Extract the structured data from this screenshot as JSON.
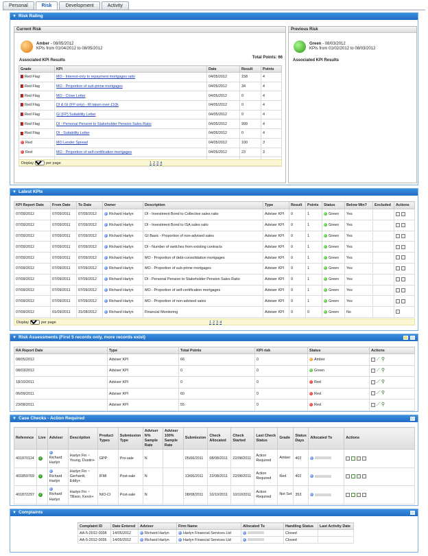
{
  "tabs": [
    "Personal",
    "Risk",
    "Development",
    "Activity"
  ],
  "risk_rating": {
    "title": "Risk Rating",
    "current": {
      "header": "Current Risk",
      "status": "Amber",
      "date": "- 08/05/2012",
      "period": "KPIs from 01/04/2012 to 08/05/2012",
      "total_points": "Total Points: 66",
      "assoc": "Associated KPI Results"
    },
    "previous": {
      "header": "Previous Risk",
      "status": "Green",
      "date": "- 08/03/2012",
      "period": "KPIs from 01/02/2012 to 08/03/2012",
      "assoc": "Associated KPI Results"
    },
    "columns": [
      "Grade",
      "KPI",
      "Date",
      "Result",
      "Points"
    ],
    "rows": [
      {
        "grade": "Red Flag",
        "kpi": "MO - Interest-only to repayment mortgages ratio",
        "date": "04/05/2012",
        "result": "158",
        "points": "4"
      },
      {
        "grade": "Red Flag",
        "kpi": "MO - Proportion of sub-prime mortgages",
        "date": "04/05/2012",
        "result": "34",
        "points": "4"
      },
      {
        "grade": "Red Flag",
        "kpi": "MO - Close Letter",
        "date": "04/05/2012",
        "result": "0",
        "points": "4"
      },
      {
        "grade": "Red Flag",
        "kpi": "DI & GI (FP only) - RI taken over £10k",
        "date": "04/05/2012",
        "result": "0",
        "points": "4"
      },
      {
        "grade": "Red Flag",
        "kpi": "GI (FP) Suitability Letter",
        "date": "04/05/2012",
        "result": "0",
        "points": "4"
      },
      {
        "grade": "Red Flag",
        "kpi": "DI - Personal Pension to Stakeholder Pension Sales Ratio",
        "date": "04/05/2012",
        "result": "999",
        "points": "4"
      },
      {
        "grade": "Red Flag",
        "kpi": "DI - Suitability Letter",
        "date": "04/05/2012",
        "result": "0",
        "points": "4"
      },
      {
        "grade": "Red",
        "kpi": "MO Lender Spread",
        "date": "04/05/2012",
        "result": "100",
        "points": "3"
      },
      {
        "grade": "Red",
        "kpi": "MO - Proportion of self-certification mortgages",
        "date": "04/05/2012",
        "result": "23",
        "points": "3"
      },
      {
        "grade": "Red",
        "kpi": "GI/FP - Insurer Spread",
        "date": "04/05/2012",
        "result": "100",
        "points": "3"
      }
    ],
    "pager": {
      "display": "Display",
      "value": "10",
      "per_page": "per page",
      "pages": [
        "1",
        "2",
        "3",
        "4"
      ]
    }
  },
  "latest_kpis": {
    "title": "Latest KPIs",
    "columns": [
      "KPI Report Date",
      "From Date",
      "To Date",
      "Owner",
      "Description",
      "Type",
      "Result",
      "Points",
      "Status",
      "Below Min?",
      "Excluded",
      "Actions"
    ],
    "rows": [
      [
        "07/09/2012",
        "07/09/2011",
        "07/09/2012",
        "Richard Harlyn",
        "DI - Investment Bond to Collective sales ratio",
        "Adviser KPI",
        "0",
        "1",
        "Green",
        "Yes",
        ""
      ],
      [
        "07/09/2012",
        "07/09/2011",
        "07/09/2012",
        "Richard Harlyn",
        "DI - Investment Bond to ISA sales ratio",
        "Adviser KPI",
        "0",
        "1",
        "Green",
        "Yes",
        ""
      ],
      [
        "07/09/2012",
        "07/09/2011",
        "07/09/2012",
        "Richard Harlyn",
        "GI Basic - Proportion of non-advised sales",
        "Adviser KPI",
        "0",
        "1",
        "Green",
        "Yes",
        ""
      ],
      [
        "07/09/2012",
        "07/09/2011",
        "07/09/2012",
        "Richard Harlyn",
        "DI - Number of switches from existing contracts",
        "Adviser KPI",
        "0",
        "1",
        "Green",
        "Yes",
        ""
      ],
      [
        "07/09/2012",
        "07/09/2011",
        "07/09/2012",
        "Richard Harlyn",
        "MO - Proportion of debt-consolidation mortgages",
        "Adviser KPI",
        "0",
        "1",
        "Green",
        "Yes",
        ""
      ],
      [
        "07/09/2012",
        "07/09/2011",
        "07/09/2012",
        "Richard Harlyn",
        "MO - Proportion of sub-prime mortgages",
        "Adviser KPI",
        "0",
        "1",
        "Green",
        "Yes",
        ""
      ],
      [
        "07/09/2012",
        "07/09/2011",
        "07/09/2012",
        "Richard Harlyn",
        "DI - Personal Pension to Stakeholder Pension Sales Ratio",
        "Adviser KPI",
        "0",
        "1",
        "Green",
        "Yes",
        ""
      ],
      [
        "07/09/2012",
        "07/09/2011",
        "07/09/2012",
        "Richard Harlyn",
        "MO - Proportion of self-certification mortgages",
        "Adviser KPI",
        "0",
        "1",
        "Green",
        "Yes",
        ""
      ],
      [
        "07/09/2012",
        "07/09/2011",
        "07/09/2012",
        "Richard Harlyn",
        "MO - Proportion of non-advised sales",
        "Adviser KPI",
        "0",
        "1",
        "Green",
        "Yes",
        ""
      ],
      [
        "07/09/2012",
        "01/09/2011",
        "31/08/2012",
        "Richard Harlyn",
        "Financial Monitoring",
        "Adviser KPI",
        "0",
        "0",
        "Green",
        "No",
        ""
      ]
    ],
    "pager": {
      "display": "Display",
      "value": "10",
      "per_page": "per page",
      "pages": [
        "1",
        "2",
        "3",
        "4"
      ]
    }
  },
  "risk_assessments": {
    "title": "Risk Assessments (First 5 records only, more records exist)",
    "columns": [
      "RA Report Date",
      "Type",
      "Total Points",
      "KPI risk",
      "Status",
      "Actions"
    ],
    "rows": [
      {
        "date": "08/05/2012",
        "type": "Adviser KPI",
        "points": "66",
        "kpi": "0",
        "status": "Amber",
        "c": "a"
      },
      {
        "date": "08/03/2012",
        "type": "Adviser KPI",
        "points": "0",
        "kpi": "0",
        "status": "Green",
        "c": "g"
      },
      {
        "date": "18/10/2011",
        "type": "Adviser KPI",
        "points": "0",
        "kpi": "0",
        "status": "Red",
        "c": "r"
      },
      {
        "date": "06/09/2011",
        "type": "Adviser KPI",
        "points": "60",
        "kpi": "0",
        "status": "Red",
        "c": "r"
      },
      {
        "date": "23/08/2011",
        "type": "Adviser KPI",
        "points": "55",
        "kpi": "0",
        "status": "Red",
        "c": "r"
      }
    ]
  },
  "case_checks": {
    "title": "Case Checks - Action Required",
    "columns": [
      "Reference",
      "Live",
      "Adviser",
      "Description",
      "Product Types",
      "Submission Type",
      "Adviser N% Sample Rate",
      "Adviser 100% Sample Rate",
      "Submission",
      "Check Allocated",
      "Check Started",
      "Last Check Status",
      "Grade",
      "Status Days",
      "Allocated To",
      "Actions"
    ],
    "rows": [
      {
        "ref": "401870114",
        "adviser": "Richard Harlyn",
        "desc": "Harlyn Fin ~ Young, Dustin+",
        "prod": "GPP",
        "sub": "Pre-sale",
        "n": "N",
        "h": "",
        "submission": "05/06/2011",
        "alloc": "08/08/2011",
        "started": "22/08/2011",
        "last": "Action Required",
        "grade": "Amber",
        "days": "402"
      },
      {
        "ref": "401859769",
        "adviser": "Richard Harlyn",
        "desc": "Harlyn Fin ~ Gerhardt, Eddy+",
        "prod": "IFMI",
        "sub": "Post-sale",
        "n": "N",
        "h": "",
        "submission": "13/06/2011",
        "alloc": "22/08/2011",
        "started": "22/08/2011",
        "last": "Action Required",
        "grade": "Red",
        "days": "402"
      },
      {
        "ref": "401872297",
        "adviser": "Richard Harlyn",
        "desc": "Harlyn Fin ~ Tillson, Kevin+",
        "prod": "NIO-CI",
        "sub": "Post-sale",
        "n": "N",
        "h": "",
        "submission": "08/08/2011",
        "alloc": "10/10/2011",
        "started": "10/10/2011",
        "last": "Action Required",
        "grade": "Not Set",
        "days": "353"
      }
    ]
  },
  "complaints": {
    "title": "Complaints",
    "columns": [
      "Complaint ID",
      "Date Entered",
      "Adviser",
      "Firm Name",
      "Allocated To",
      "Handling Status",
      "Last Activity Date"
    ],
    "rows": [
      {
        "id": "AA-5-2012-0038",
        "date": "14/05/2012",
        "adviser": "Richard Harlyn",
        "firm": "Harlyn Financial Services Ltd",
        "status": "Closed",
        "last": ""
      },
      {
        "id": "AA-5-2012-0035",
        "date": "14/05/2012",
        "adviser": "Richard Harlyn",
        "firm": "Harlyn Financial Services Ltd",
        "status": "Closed",
        "last": ""
      }
    ]
  }
}
